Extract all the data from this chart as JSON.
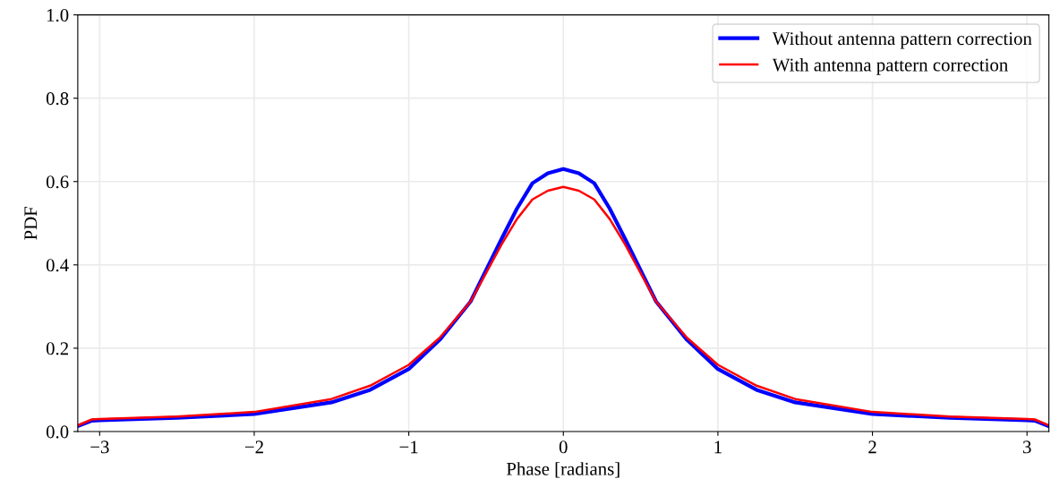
{
  "chart_data": {
    "type": "line",
    "xlabel": "Phase [radians]",
    "ylabel": "PDF",
    "xlim": [
      -3.1416,
      3.1416
    ],
    "ylim": [
      0,
      1.0
    ],
    "xticks": [
      {
        "value": -3,
        "label": "−3"
      },
      {
        "value": -2,
        "label": "−2"
      },
      {
        "value": -1,
        "label": "−1"
      },
      0,
      1,
      2,
      3
    ],
    "yticks": [
      {
        "value": 0,
        "label": "0.0"
      },
      0.2,
      0.4,
      0.6,
      0.8,
      {
        "value": 1.0,
        "label": "1.0"
      }
    ],
    "grid": true,
    "legend": "top right",
    "line_style": "solid",
    "marker": "none",
    "x": [
      -3.14,
      -3.05,
      -3.0,
      -2.5,
      -2.0,
      -1.5,
      -1.25,
      -1.0,
      -0.8,
      -0.6,
      -0.4,
      -0.3,
      -0.2,
      -0.1,
      0,
      0.1,
      0.2,
      0.3,
      0.4,
      0.6,
      0.8,
      1.0,
      1.25,
      1.5,
      2.0,
      2.5,
      3.0,
      3.05,
      3.14
    ],
    "series": [
      {
        "name": "Without antenna pattern correction",
        "color": "#0000ff",
        "values": [
          0.013,
          0.026,
          0.027,
          0.033,
          0.042,
          0.07,
          0.1,
          0.15,
          0.22,
          0.312,
          0.462,
          0.535,
          0.596,
          0.62,
          0.63,
          0.62,
          0.596,
          0.535,
          0.462,
          0.312,
          0.22,
          0.15,
          0.1,
          0.07,
          0.042,
          0.033,
          0.027,
          0.026,
          0.013
        ]
      },
      {
        "name": "With antenna pattern correction",
        "color": "#ff0000",
        "values": [
          0.015,
          0.029,
          0.03,
          0.036,
          0.047,
          0.078,
          0.11,
          0.16,
          0.225,
          0.312,
          0.449,
          0.51,
          0.557,
          0.578,
          0.587,
          0.578,
          0.557,
          0.51,
          0.449,
          0.312,
          0.225,
          0.16,
          0.11,
          0.078,
          0.047,
          0.036,
          0.03,
          0.029,
          0.015
        ]
      }
    ]
  }
}
